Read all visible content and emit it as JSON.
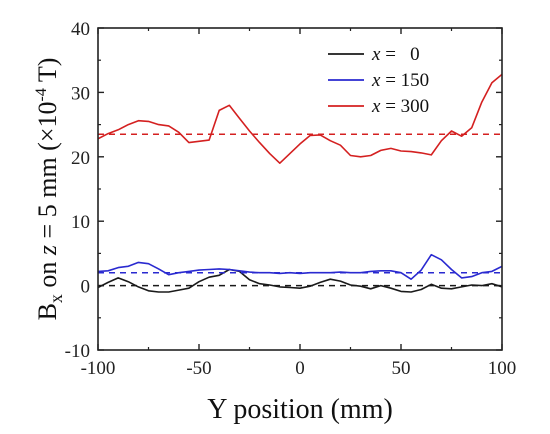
{
  "chart_data": {
    "type": "line",
    "xlabel": "Y position (mm)",
    "ylabel_parts": {
      "main": "B",
      "sub": "x",
      "on": " on ",
      "z": "z",
      "mid": " = 5 mm (×10",
      "sup": "-4",
      "tail": " T)"
    },
    "xlim": [
      -100,
      100
    ],
    "ylim": [
      -10,
      40
    ],
    "xticks": [
      -100,
      -50,
      0,
      50,
      100
    ],
    "yticks": [
      -10,
      0,
      10,
      20,
      30,
      40
    ],
    "grid": false,
    "legend_position": "top-right",
    "series": [
      {
        "name": "x =   0",
        "legend_var": "x",
        "legend_rest": " =   0",
        "color": "#1a1a1a",
        "x": [
          -100,
          -95,
          -90,
          -85,
          -80,
          -75,
          -70,
          -65,
          -60,
          -55,
          -50,
          -45,
          -40,
          -35,
          -30,
          -25,
          -20,
          -15,
          -10,
          -5,
          0,
          5,
          10,
          15,
          20,
          25,
          30,
          35,
          40,
          45,
          50,
          55,
          60,
          65,
          70,
          75,
          80,
          85,
          90,
          95,
          100
        ],
        "y": [
          -0.3,
          0.5,
          1.2,
          0.6,
          -0.2,
          -0.8,
          -1.0,
          -1.0,
          -0.7,
          -0.4,
          0.6,
          1.3,
          1.6,
          2.5,
          2.2,
          0.9,
          0.3,
          0.1,
          -0.2,
          -0.3,
          -0.4,
          -0.1,
          0.5,
          1.0,
          0.7,
          0.1,
          -0.1,
          -0.5,
          0.0,
          -0.4,
          -0.9,
          -1.0,
          -0.6,
          0.2,
          -0.4,
          -0.5,
          -0.2,
          0.1,
          0.0,
          0.3,
          -0.2
        ],
        "mean": 0
      },
      {
        "name": "x = 150",
        "legend_var": "x",
        "legend_rest": " = 150",
        "color": "#2a2ad0",
        "x": [
          -100,
          -95,
          -90,
          -85,
          -80,
          -75,
          -70,
          -65,
          -60,
          -55,
          -50,
          -45,
          -40,
          -35,
          -30,
          -25,
          -20,
          -15,
          -10,
          -5,
          0,
          5,
          10,
          15,
          20,
          25,
          30,
          35,
          40,
          45,
          50,
          55,
          60,
          65,
          70,
          75,
          80,
          85,
          90,
          95,
          100
        ],
        "y": [
          2.2,
          2.3,
          2.8,
          3.0,
          3.6,
          3.4,
          2.6,
          1.7,
          2.0,
          2.2,
          2.4,
          2.5,
          2.6,
          2.5,
          2.3,
          2.1,
          2.0,
          2.0,
          1.9,
          2.0,
          1.9,
          2.0,
          2.0,
          2.0,
          2.1,
          2.0,
          2.0,
          2.2,
          2.3,
          2.3,
          2.0,
          1.0,
          2.4,
          4.8,
          4.0,
          2.5,
          1.2,
          1.4,
          2.0,
          2.2,
          3.0
        ],
        "mean": 2
      },
      {
        "name": "x = 300",
        "legend_var": "x",
        "legend_rest": " = 300",
        "color": "#d42020",
        "x": [
          -100,
          -95,
          -90,
          -85,
          -80,
          -75,
          -70,
          -65,
          -60,
          -55,
          -50,
          -45,
          -40,
          -35,
          -30,
          -25,
          -20,
          -15,
          -10,
          -5,
          0,
          5,
          10,
          15,
          20,
          25,
          30,
          35,
          40,
          45,
          50,
          55,
          60,
          65,
          70,
          75,
          80,
          85,
          90,
          95,
          100
        ],
        "y": [
          22.8,
          23.6,
          24.2,
          25.0,
          25.6,
          25.5,
          25.0,
          24.8,
          23.8,
          22.2,
          22.4,
          22.6,
          27.2,
          28.0,
          26.0,
          24.0,
          22.2,
          20.5,
          19.0,
          20.5,
          22.0,
          23.3,
          23.4,
          22.5,
          21.8,
          20.2,
          20.0,
          20.2,
          21.0,
          21.3,
          20.9,
          20.8,
          20.6,
          20.3,
          22.5,
          24.0,
          23.2,
          24.5,
          28.5,
          31.5,
          32.8
        ],
        "mean": 23.5
      }
    ]
  }
}
